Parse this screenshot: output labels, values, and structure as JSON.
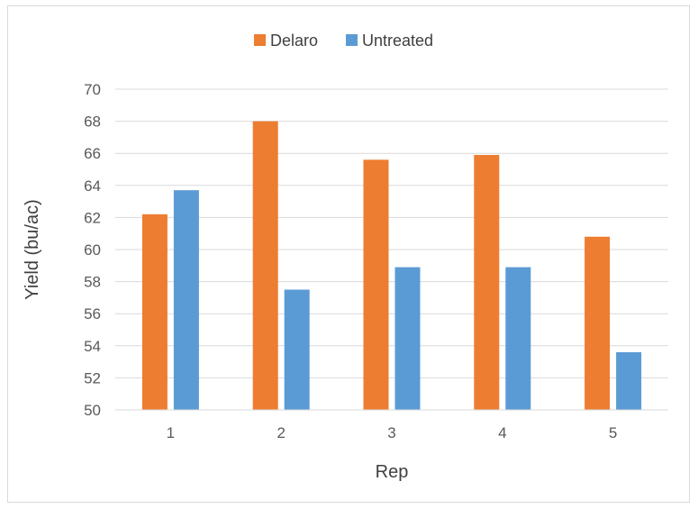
{
  "chart_data": {
    "type": "bar",
    "categories": [
      "1",
      "2",
      "3",
      "4",
      "5"
    ],
    "series": [
      {
        "name": "Delaro",
        "color": "#ed7d31",
        "values": [
          62.2,
          68.0,
          65.6,
          65.9,
          60.8
        ]
      },
      {
        "name": "Untreated",
        "color": "#5b9bd5",
        "values": [
          63.7,
          57.5,
          58.9,
          58.9,
          53.6
        ]
      }
    ],
    "xlabel": "Rep",
    "ylabel": "Yield (bu/ac)",
    "ylim": [
      50,
      70
    ],
    "yticks": [
      "50",
      "52",
      "54",
      "56",
      "58",
      "60",
      "62",
      "64",
      "66",
      "68",
      "70"
    ],
    "grid": true,
    "legend_position": "top"
  }
}
